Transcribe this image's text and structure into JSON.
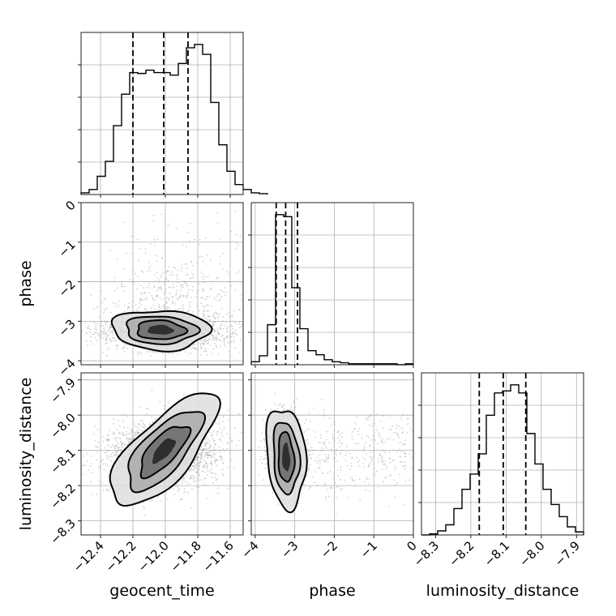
{
  "chart_data": {
    "type": "corner",
    "parameters": [
      "geocent_time",
      "phase",
      "luminosity_distance"
    ],
    "ranges": {
      "geocent_time": [
        -12.52,
        -11.52
      ],
      "phase": [
        -4.1,
        0.0
      ],
      "luminosity_distance": [
        -8.34,
        -7.88
      ]
    },
    "ticks": {
      "geocent_time": [
        -12.4,
        -12.2,
        -12.0,
        -11.8,
        -11.6
      ],
      "phase": [
        -4,
        -3,
        -2,
        -1,
        0
      ],
      "luminosity_distance": [
        -8.3,
        -8.2,
        -8.1,
        -8.0,
        -7.9
      ]
    },
    "tick_labels": {
      "geocent_time": [
        "−12.4",
        "−12.2",
        "−12.0",
        "−11.8",
        "−11.6"
      ],
      "phase": [
        "−4",
        "−3",
        "−2",
        "−1",
        "0"
      ],
      "luminosity_distance": [
        "−8.3",
        "−8.2",
        "−8.1",
        "−8.0",
        "−7.9"
      ]
    },
    "histograms": {
      "geocent_time": {
        "bin_width": 0.05,
        "counts": [
          2,
          6,
          22,
          40,
          83,
          121,
          147,
          146,
          150,
          147,
          147,
          144,
          158,
          177,
          181,
          169,
          111,
          60,
          28,
          12,
          6,
          2,
          1
        ]
      },
      "phase": {
        "bin_width": 0.205,
        "counts": [
          3,
          9,
          40,
          150,
          148,
          77,
          36,
          14,
          10,
          5,
          3,
          2,
          1,
          1,
          1,
          1,
          1,
          1,
          0,
          1
        ]
      },
      "luminosity_distance": {
        "bin_width": 0.023,
        "counts": [
          0,
          1,
          4,
          10,
          26,
          45,
          60,
          80,
          118,
          140,
          142,
          148,
          140,
          100,
          70,
          45,
          30,
          18,
          8,
          3
        ]
      }
    },
    "quantiles": {
      "geocent_time": [
        -12.2,
        -12.01,
        -11.86
      ],
      "phase": [
        -3.47,
        -3.23,
        -2.93
      ],
      "luminosity_distance": [
        -8.176,
        -8.108,
        -8.044
      ]
    },
    "grid": true,
    "title": "",
    "colors": {
      "line": "#000000",
      "points": "#9a9a9a",
      "density": "#000000",
      "grid": "#b0b0b0"
    }
  }
}
